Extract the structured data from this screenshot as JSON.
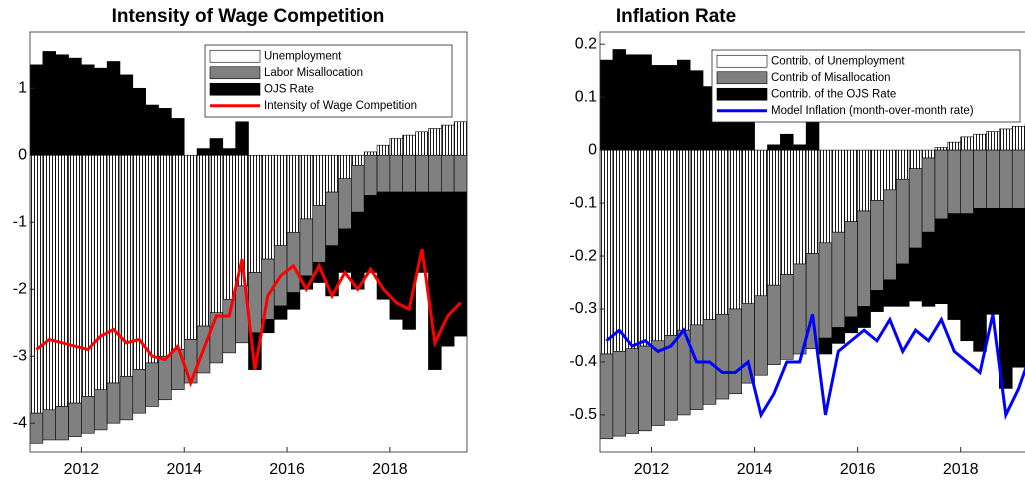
{
  "chart_data": [
    {
      "type": "bar",
      "title": "Intensity of Wage Competition",
      "x": [
        2011.0,
        2011.25,
        2011.5,
        2011.75,
        2012.0,
        2012.25,
        2012.5,
        2012.75,
        2013.0,
        2013.25,
        2013.5,
        2013.75,
        2014.0,
        2014.25,
        2014.5,
        2014.75,
        2015.0,
        2015.25,
        2015.5,
        2015.75,
        2016.0,
        2016.25,
        2016.5,
        2016.75,
        2017.0,
        2017.25,
        2017.5,
        2017.75,
        2018.0,
        2018.25,
        2018.5,
        2018.75,
        2019.0,
        2019.25
      ],
      "xlim": [
        2011,
        2019.5
      ],
      "xticks": [
        2012,
        2014,
        2016,
        2018
      ],
      "ylim": [
        -4.43,
        1.84
      ],
      "yticks": [
        -4,
        -3,
        -2,
        -1,
        0,
        1
      ],
      "stacked": true,
      "bar_width": 0.25,
      "legend": "upper right",
      "series": [
        {
          "name": "Unemployment",
          "color": "#ffffff",
          "pattern": "hatch",
          "values": [
            -3.85,
            -3.8,
            -3.75,
            -3.7,
            -3.6,
            -3.5,
            -3.4,
            -3.3,
            -3.2,
            -3.1,
            -3.0,
            -2.9,
            -2.75,
            -2.55,
            -2.35,
            -2.15,
            -1.95,
            -1.75,
            -1.55,
            -1.35,
            -1.15,
            -0.95,
            -0.75,
            -0.55,
            -0.35,
            -0.15,
            0.05,
            0.15,
            0.25,
            0.3,
            0.35,
            0.4,
            0.45,
            0.5
          ]
        },
        {
          "name": "Labor Misallocation",
          "color": "#808080",
          "values": [
            -0.45,
            -0.45,
            -0.5,
            -0.5,
            -0.55,
            -0.6,
            -0.6,
            -0.65,
            -0.65,
            -0.65,
            -0.65,
            -0.6,
            -0.65,
            -0.7,
            -0.75,
            -0.8,
            -0.85,
            -0.9,
            -0.9,
            -0.9,
            -0.9,
            -0.85,
            -0.85,
            -0.8,
            -0.75,
            -0.7,
            -0.6,
            -0.55,
            -0.55,
            -0.55,
            -0.55,
            -0.55,
            -0.55,
            -0.55
          ]
        },
        {
          "name": "OJS Rate",
          "color": "#000000",
          "values": [
            1.35,
            1.55,
            1.5,
            1.45,
            1.35,
            1.3,
            1.4,
            1.2,
            1.0,
            0.75,
            0.7,
            0.55,
            0,
            0.1,
            0.25,
            0.1,
            0.5,
            -0.55,
            -0.2,
            -0.2,
            -0.25,
            -0.2,
            -0.3,
            -0.75,
            -0.65,
            -1.15,
            -1.15,
            -1.6,
            -1.9,
            -2.05,
            -1.2,
            -2.65,
            -2.3,
            -2.15
          ]
        },
        {
          "name": "Intensity of Wage Competition",
          "type": "line",
          "color": "#ff0000",
          "values": [
            -2.9,
            -2.75,
            -2.8,
            -2.85,
            -2.9,
            -2.7,
            -2.6,
            -2.8,
            -2.75,
            -3.0,
            -3.05,
            -2.85,
            -3.4,
            -2.9,
            -2.4,
            -2.4,
            -1.55,
            -3.2,
            -2.1,
            -1.8,
            -1.65,
            -2.0,
            -1.65,
            -2.1,
            -1.75,
            -2.0,
            -1.7,
            -2.0,
            -2.2,
            -2.3,
            -1.4,
            -2.8,
            -2.4,
            -2.2
          ]
        }
      ]
    },
    {
      "type": "bar",
      "title": "Inflation Rate",
      "x": [
        2011.0,
        2011.25,
        2011.5,
        2011.75,
        2012.0,
        2012.25,
        2012.5,
        2012.75,
        2013.0,
        2013.25,
        2013.5,
        2013.75,
        2014.0,
        2014.25,
        2014.5,
        2014.75,
        2015.0,
        2015.25,
        2015.5,
        2015.75,
        2016.0,
        2016.25,
        2016.5,
        2016.75,
        2017.0,
        2017.25,
        2017.5,
        2017.75,
        2018.0,
        2018.25,
        2018.5,
        2018.75,
        2019.0,
        2019.25
      ],
      "xlim": [
        2011,
        2019.5
      ],
      "xticks": [
        2012,
        2014,
        2016,
        2018
      ],
      "ylim": [
        -0.57,
        0.223
      ],
      "yticks": [
        -0.5,
        -0.4,
        -0.3,
        -0.2,
        -0.1,
        0,
        0.1,
        0.2
      ],
      "stacked": true,
      "bar_width": 0.25,
      "legend": "upper right",
      "series": [
        {
          "name": "Contrib. of Unemployment",
          "color": "#ffffff",
          "pattern": "hatch",
          "values": [
            -0.385,
            -0.38,
            -0.375,
            -0.37,
            -0.36,
            -0.35,
            -0.34,
            -0.33,
            -0.32,
            -0.31,
            -0.3,
            -0.29,
            -0.275,
            -0.255,
            -0.235,
            -0.215,
            -0.195,
            -0.175,
            -0.155,
            -0.135,
            -0.115,
            -0.095,
            -0.075,
            -0.055,
            -0.035,
            -0.015,
            0.005,
            0.015,
            0.025,
            0.03,
            0.035,
            0.04,
            0.045,
            0.05
          ]
        },
        {
          "name": "Contrib of Misallocation",
          "color": "#808080",
          "values": [
            -0.16,
            -0.16,
            -0.16,
            -0.16,
            -0.16,
            -0.16,
            -0.16,
            -0.16,
            -0.16,
            -0.16,
            -0.16,
            -0.15,
            -0.15,
            -0.15,
            -0.16,
            -0.17,
            -0.18,
            -0.18,
            -0.18,
            -0.18,
            -0.18,
            -0.17,
            -0.17,
            -0.16,
            -0.15,
            -0.14,
            -0.13,
            -0.12,
            -0.12,
            -0.11,
            -0.11,
            -0.11,
            -0.11,
            -0.11
          ]
        },
        {
          "name": "Contrib. of the OJS Rate",
          "color": "#000000",
          "values": [
            0.17,
            0.19,
            0.18,
            0.18,
            0.16,
            0.16,
            0.17,
            0.15,
            0.12,
            0.09,
            0.08,
            0.07,
            0,
            0.01,
            0.03,
            0.01,
            0.06,
            -0.03,
            -0.03,
            -0.03,
            -0.04,
            -0.04,
            -0.05,
            -0.08,
            -0.1,
            -0.14,
            -0.16,
            -0.2,
            -0.24,
            -0.27,
            -0.2,
            -0.34,
            -0.3,
            -0.28
          ]
        },
        {
          "name": "Model Inflation (month-over-month rate)",
          "type": "line",
          "color": "#0000ff",
          "values": [
            -0.36,
            -0.34,
            -0.37,
            -0.36,
            -0.38,
            -0.37,
            -0.34,
            -0.4,
            -0.4,
            -0.42,
            -0.42,
            -0.4,
            -0.5,
            -0.46,
            -0.4,
            -0.4,
            -0.31,
            -0.5,
            -0.38,
            -0.36,
            -0.34,
            -0.36,
            -0.32,
            -0.38,
            -0.34,
            -0.36,
            -0.32,
            -0.38,
            -0.4,
            -0.42,
            -0.31,
            -0.5,
            -0.45,
            -0.38
          ]
        }
      ]
    }
  ]
}
